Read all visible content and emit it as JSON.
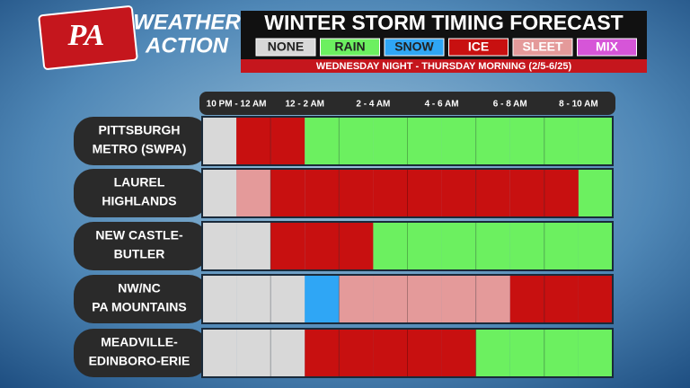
{
  "header": {
    "logo": "PA",
    "brand_line1": "WEATHER",
    "brand_line2": "ACTION"
  },
  "title": "WINTER STORM TIMING FORECAST",
  "legend": [
    {
      "label": "NONE",
      "color": "#d8d8d8",
      "text_color": "#222222"
    },
    {
      "label": "RAIN",
      "color": "#6cf060",
      "text_color": "#222222"
    },
    {
      "label": "SNOW",
      "color": "#2fa6f5",
      "text_color": "#222222"
    },
    {
      "label": "ICE",
      "color": "#c81010",
      "text_color": "#ffffff"
    },
    {
      "label": "SLEET",
      "color": "#e49a9a",
      "text_color": "#ffffff"
    },
    {
      "label": "MIX",
      "color": "#d655d8",
      "text_color": "#ffffff"
    }
  ],
  "subtitle": "WEDNESDAY NIGHT - THURSDAY MORNING (2/5-6/25)",
  "columns": [
    "10 PM - 12 AM",
    "12 - 2 AM",
    "2 - 4 AM",
    "4 - 6 AM",
    "6 - 8 AM",
    "8 - 10 AM"
  ],
  "rows": [
    {
      "label_lines": [
        "PITTSBURGH",
        "METRO (SWPA)"
      ],
      "slots": [
        0,
        3,
        3,
        1,
        1,
        1,
        1,
        1,
        1,
        1,
        1,
        1
      ]
    },
    {
      "label_lines": [
        "LAUREL",
        "HIGHLANDS"
      ],
      "slots": [
        0,
        4,
        3,
        3,
        3,
        3,
        3,
        3,
        3,
        3,
        3,
        1
      ]
    },
    {
      "label_lines": [
        "NEW CASTLE-",
        "BUTLER"
      ],
      "slots": [
        0,
        0,
        3,
        3,
        3,
        1,
        1,
        1,
        1,
        1,
        1,
        1
      ]
    },
    {
      "label_lines": [
        "NW/NC",
        "PA MOUNTAINS"
      ],
      "slots": [
        0,
        0,
        0,
        2,
        4,
        4,
        4,
        4,
        4,
        3,
        3,
        3
      ]
    },
    {
      "label_lines": [
        "MEADVILLE-",
        "EDINBORO-ERIE"
      ],
      "slots": [
        0,
        0,
        0,
        3,
        3,
        3,
        3,
        3,
        1,
        1,
        1,
        1
      ]
    }
  ]
}
